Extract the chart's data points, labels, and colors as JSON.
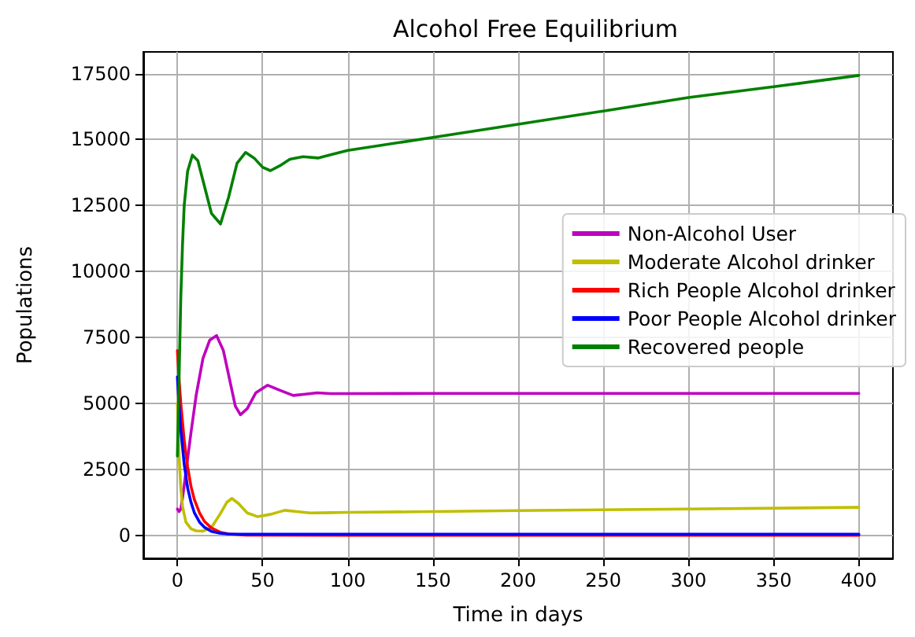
{
  "chart_data": {
    "type": "line",
    "title": "Alcohol Free Equilibrium",
    "xlabel": "Time in days",
    "ylabel": "Populations",
    "xlim": [
      -20,
      420
    ],
    "xticks": [
      0,
      50,
      100,
      150,
      200,
      250,
      300,
      350,
      400
    ],
    "ylim": [
      -872,
      18320
    ],
    "yticks": [
      0,
      2500,
      5000,
      7500,
      10000,
      12500,
      15000,
      17500
    ],
    "grid": true,
    "legend": "right",
    "marker": "none",
    "line_style": "solid",
    "series": [
      {
        "name": "Non-Alcohol User",
        "color": "#bf00bf",
        "x": [
          0,
          1,
          2,
          3,
          5,
          8,
          11,
          15,
          19,
          23,
          27,
          31,
          34,
          37,
          41,
          46,
          53,
          60,
          68,
          75,
          82,
          90,
          100,
          150,
          200,
          300,
          400
        ],
        "values": [
          1000,
          900,
          1000,
          1400,
          2400,
          3900,
          5300,
          6700,
          7400,
          7570,
          7000,
          5800,
          4900,
          4570,
          4800,
          5400,
          5690,
          5500,
          5300,
          5350,
          5400,
          5370,
          5370,
          5380,
          5380,
          5380,
          5380
        ]
      },
      {
        "name": "Moderate Alcohol drinker",
        "color": "#bfbf00",
        "x": [
          0,
          1,
          2,
          3,
          5,
          8,
          11,
          15,
          20,
          25,
          29,
          32,
          36,
          41,
          47,
          55,
          63,
          70,
          78,
          90,
          100,
          150,
          200,
          300,
          400
        ],
        "values": [
          5000,
          3000,
          1800,
          1100,
          500,
          250,
          170,
          160,
          300,
          800,
          1250,
          1400,
          1200,
          850,
          710,
          800,
          950,
          900,
          850,
          860,
          870,
          900,
          940,
          1000,
          1060
        ]
      },
      {
        "name": "Rich People Alcohol drinker",
        "color": "#ff0000",
        "x": [
          0,
          1,
          2,
          4,
          6,
          8,
          10,
          13,
          16,
          20,
          25,
          30,
          40,
          100,
          200,
          300,
          400
        ],
        "values": [
          7000,
          5900,
          5000,
          3600,
          2600,
          1850,
          1350,
          850,
          520,
          280,
          120,
          50,
          10,
          0,
          0,
          0,
          0
        ]
      },
      {
        "name": "Poor People Alcohol drinker",
        "color": "#0000ff",
        "x": [
          0,
          1,
          2,
          4,
          6,
          8,
          10,
          13,
          16,
          20,
          25,
          30,
          40,
          100,
          200,
          300,
          400
        ],
        "values": [
          6000,
          4900,
          4000,
          2700,
          1800,
          1250,
          850,
          500,
          300,
          150,
          80,
          50,
          40,
          40,
          40,
          40,
          40
        ]
      },
      {
        "name": "Recovered people",
        "color": "#008000",
        "x": [
          0,
          1,
          2,
          3,
          4,
          6,
          8.8,
          12,
          16,
          20,
          25.3,
          30,
          35,
          40,
          45,
          50,
          54.6,
          60,
          66,
          73.7,
          82.5,
          90,
          100,
          150,
          200,
          250,
          300,
          350,
          400
        ],
        "values": [
          3000,
          6000,
          9000,
          11000,
          12500,
          13800,
          14410,
          14200,
          13200,
          12200,
          11800,
          12800,
          14100,
          14510,
          14300,
          13950,
          13820,
          14000,
          14250,
          14350,
          14300,
          14420,
          14590,
          15080,
          15580,
          16080,
          16590,
          17000,
          17430
        ]
      }
    ]
  }
}
